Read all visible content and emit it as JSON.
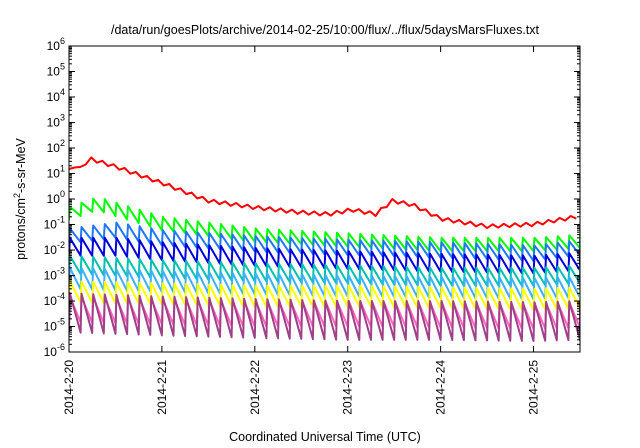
{
  "chart_data": {
    "type": "line",
    "title": "/data/run/goesPlots/archive/2014-02-25/10:00/flux/../flux/5daysMarsFluxes.txt",
    "xlabel": "Coordinated Universal Time (UTC)",
    "ylabel": "protons/cm²-s-sr-MeV",
    "ylabel_parts": {
      "pre": "protons/cm",
      "sup": "2",
      "post": "-s-sr-MeV"
    },
    "y_scale": "log",
    "ylim_exponents": [
      -6,
      6
    ],
    "y_tick_exponents": [
      -6,
      -5,
      -4,
      -3,
      -2,
      -1,
      0,
      1,
      2,
      3,
      4,
      5,
      6
    ],
    "y_tick_base": "10",
    "x_range_days": [
      "2014-2-20",
      "2014-2-25 12:00"
    ],
    "x_ticks": [
      "2014-2-20",
      "2014-2-21",
      "2014-2-22",
      "2014-2-23",
      "2014-2-24",
      "2014-2-25"
    ],
    "grid": false,
    "legend": "none",
    "series": [
      {
        "color": "#ff0000",
        "style": "smooth",
        "points": [
          [
            0.0,
            15
          ],
          [
            0.05,
            25
          ],
          [
            0.12,
            18
          ],
          [
            0.22,
            45
          ],
          [
            0.5,
            22
          ],
          [
            1.0,
            5
          ],
          [
            1.5,
            1.0
          ],
          [
            2.0,
            0.55
          ],
          [
            2.5,
            0.35
          ],
          [
            2.8,
            0.3
          ],
          [
            3.05,
            0.45
          ],
          [
            3.3,
            0.3
          ],
          [
            3.48,
            1.0
          ],
          [
            3.7,
            0.7
          ],
          [
            4.0,
            0.2
          ],
          [
            4.5,
            0.1
          ],
          [
            5.0,
            0.12
          ],
          [
            5.5,
            0.25
          ]
        ]
      },
      {
        "color": "#00ff00",
        "style": "sawtooth",
        "period": 0.125,
        "points": [
          [
            0.0,
            0.5
          ],
          [
            0.3,
            1.2
          ],
          [
            1.0,
            0.2
          ],
          [
            2.0,
            0.07
          ],
          [
            3.0,
            0.045
          ],
          [
            4.0,
            0.03
          ],
          [
            5.0,
            0.03
          ],
          [
            5.5,
            0.04
          ]
        ],
        "dip": 0.3
      },
      {
        "color": "#1e78ff",
        "style": "sawtooth",
        "period": 0.125,
        "points": [
          [
            0.0,
            0.07
          ],
          [
            0.5,
            0.12
          ],
          [
            1.0,
            0.06
          ],
          [
            2.0,
            0.035
          ],
          [
            3.0,
            0.025
          ],
          [
            4.0,
            0.02
          ],
          [
            5.0,
            0.015
          ],
          [
            5.5,
            0.025
          ]
        ],
        "dip": 0.25
      },
      {
        "color": "#0000dd",
        "style": "sawtooth",
        "period": 0.125,
        "points": [
          [
            0.0,
            0.03
          ],
          [
            0.5,
            0.03
          ],
          [
            1.0,
            0.02
          ],
          [
            2.0,
            0.012
          ],
          [
            3.0,
            0.009
          ],
          [
            4.0,
            0.007
          ],
          [
            5.0,
            0.006
          ],
          [
            5.5,
            0.008
          ]
        ],
        "dip": 0.2
      },
      {
        "color": "#00c0b0",
        "style": "sawtooth",
        "period": 0.125,
        "points": [
          [
            0.0,
            0.006
          ],
          [
            1.0,
            0.004
          ],
          [
            2.0,
            0.003
          ],
          [
            3.0,
            0.0025
          ],
          [
            4.0,
            0.002
          ],
          [
            5.0,
            0.002
          ],
          [
            5.5,
            0.0025
          ]
        ],
        "dip": 0.2
      },
      {
        "color": "#3ab0ff",
        "style": "sawtooth",
        "period": 0.125,
        "points": [
          [
            0.0,
            0.002
          ],
          [
            1.0,
            0.0015
          ],
          [
            2.0,
            0.0012
          ],
          [
            3.0,
            0.001
          ],
          [
            4.0,
            0.0009
          ],
          [
            5.0,
            0.0008
          ],
          [
            5.5,
            0.0009
          ]
        ],
        "dip": 0.15
      },
      {
        "color": "#ffff00",
        "style": "sawtooth",
        "period": 0.125,
        "points": [
          [
            0.0,
            0.0006
          ],
          [
            1.0,
            0.0005
          ],
          [
            2.0,
            0.0004
          ],
          [
            3.0,
            0.0004
          ],
          [
            4.0,
            0.00035
          ],
          [
            5.0,
            0.0003
          ],
          [
            5.5,
            0.00035
          ]
        ],
        "dip": 0.15
      },
      {
        "color": "#ff66bb",
        "style": "sawtooth",
        "period": 0.125,
        "points": [
          [
            0.0,
            0.00015
          ],
          [
            1.0,
            0.00012
          ],
          [
            2.0,
            0.0001
          ],
          [
            3.0,
            0.0001
          ],
          [
            4.0,
            9e-05
          ],
          [
            5.0,
            8e-05
          ],
          [
            5.5,
            9e-05
          ]
        ],
        "dip": 0.1
      },
      {
        "color": "#a0408a",
        "style": "sawtooth",
        "period": 0.125,
        "points": [
          [
            0.0,
            0.0002
          ],
          [
            1.0,
            0.00015
          ],
          [
            2.0,
            0.00012
          ],
          [
            3.0,
            0.0001
          ],
          [
            4.0,
            0.0001
          ],
          [
            5.0,
            9e-05
          ],
          [
            5.5,
            0.0001
          ]
        ],
        "dip": 0.03
      }
    ]
  }
}
